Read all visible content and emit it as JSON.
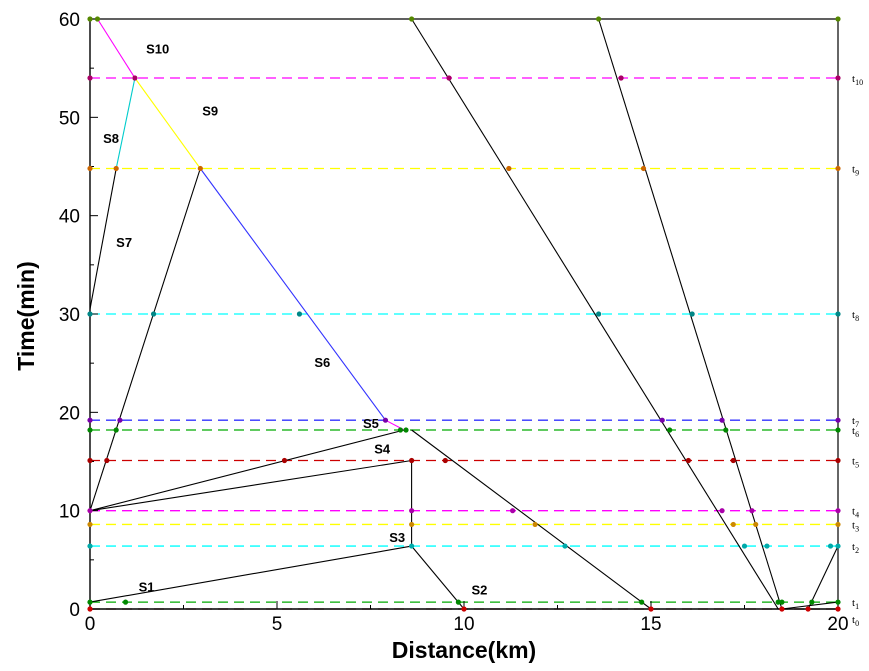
{
  "chart_data": {
    "type": "line",
    "xlabel": "Distance(km)",
    "ylabel": "Time(min)",
    "xlim": [
      0,
      20
    ],
    "ylim": [
      0,
      60
    ],
    "x_ticks": [
      "0",
      "5",
      "10",
      "15",
      "20"
    ],
    "y_ticks": [
      "0",
      "10",
      "20",
      "30",
      "40",
      "50",
      "60"
    ],
    "grid": false,
    "time_levels": [
      {
        "name": "t",
        "sub": "0",
        "y": 0.0,
        "color": "#8b0000"
      },
      {
        "name": "t",
        "sub": "1",
        "y": 0.7,
        "color": "#00aa00"
      },
      {
        "name": "t",
        "sub": "2",
        "y": 6.4,
        "color": "#00ffff"
      },
      {
        "name": "t",
        "sub": "3",
        "y": 8.6,
        "color": "#ffff00"
      },
      {
        "name": "t",
        "sub": "4",
        "y": 10.0,
        "color": "#ff00ff"
      },
      {
        "name": "t",
        "sub": "5",
        "y": 15.1,
        "color": "#cc0000"
      },
      {
        "name": "t",
        "sub": "6",
        "y": 18.2,
        "color": "#00aa00"
      },
      {
        "name": "t",
        "sub": "7",
        "y": 19.2,
        "color": "#3333ff"
      },
      {
        "name": "t",
        "sub": "8",
        "y": 30.0,
        "color": "#00ffff"
      },
      {
        "name": "t",
        "sub": "9",
        "y": 44.8,
        "color": "#ffff00"
      },
      {
        "name": "t",
        "sub": "10",
        "y": 54.0,
        "color": "#ff00ff"
      }
    ],
    "lines": [
      {
        "points": [
          [
            0,
            0
          ],
          [
            18.5,
            0
          ]
        ],
        "color": "#000000"
      },
      {
        "points": [
          [
            18.5,
            0
          ],
          [
            20,
            0.7
          ]
        ],
        "color": "#000000"
      },
      {
        "points": [
          [
            19.2,
            0
          ],
          [
            20,
            6.4
          ]
        ],
        "color": "#000000"
      },
      {
        "points": [
          [
            0,
            0.7
          ],
          [
            8.6,
            6.4
          ]
        ],
        "color": "#000000"
      },
      {
        "points": [
          [
            8.6,
            6.4
          ],
          [
            8.6,
            15.1
          ]
        ],
        "color": "#000000"
      },
      {
        "points": [
          [
            8.6,
            6.4
          ],
          [
            10,
            0
          ]
        ],
        "color": "#000000"
      },
      {
        "points": [
          [
            0,
            10
          ],
          [
            8.6,
            15.1
          ]
        ],
        "color": "#000000"
      },
      {
        "points": [
          [
            0,
            10
          ],
          [
            8.4,
            18.2
          ]
        ],
        "color": "#000000"
      },
      {
        "points": [
          [
            0,
            10
          ],
          [
            2.95,
            44.8
          ]
        ],
        "color": "#000000"
      },
      {
        "points": [
          [
            8.6,
            18.2
          ],
          [
            15.0,
            0
          ]
        ],
        "color": "#000000"
      },
      {
        "points": [
          [
            0,
            30.5
          ],
          [
            0.7,
            44.8
          ]
        ],
        "color": "#000000"
      },
      {
        "points": [
          [
            8.6,
            60
          ],
          [
            18.4,
            0
          ]
        ],
        "color": "#000000"
      },
      {
        "points": [
          [
            13.6,
            60
          ],
          [
            18.5,
            0
          ]
        ],
        "color": "#000000"
      },
      {
        "points": [
          [
            0.2,
            60
          ],
          [
            1.2,
            54.0
          ]
        ],
        "color": "#ff00ff"
      },
      {
        "points": [
          [
            0.7,
            44.8
          ],
          [
            1.2,
            54.0
          ]
        ],
        "color": "#00cccc"
      },
      {
        "points": [
          [
            1.2,
            54.0
          ],
          [
            2.95,
            44.8
          ]
        ],
        "color": "#ffff00"
      },
      {
        "points": [
          [
            2.95,
            44.8
          ],
          [
            7.9,
            19.2
          ]
        ],
        "color": "#3333ff"
      },
      {
        "points": [
          [
            7.9,
            19.2
          ],
          [
            8.4,
            18.2
          ]
        ],
        "color": "#ff00ff"
      }
    ],
    "points": [
      {
        "x": 0,
        "y": 0,
        "color": "#cc0000"
      },
      {
        "x": 10,
        "y": 0,
        "color": "#cc0000"
      },
      {
        "x": 15.0,
        "y": 0,
        "color": "#cc0000"
      },
      {
        "x": 18.5,
        "y": 0,
        "color": "#cc0000"
      },
      {
        "x": 19.2,
        "y": 0,
        "color": "#cc0000"
      },
      {
        "x": 20,
        "y": 0,
        "color": "#cc0000"
      },
      {
        "x": 0,
        "y": 0.7,
        "color": "#008800"
      },
      {
        "x": 0.95,
        "y": 0.7,
        "color": "#008800"
      },
      {
        "x": 9.85,
        "y": 0.7,
        "color": "#008800"
      },
      {
        "x": 14.75,
        "y": 0.7,
        "color": "#008800"
      },
      {
        "x": 18.4,
        "y": 0.7,
        "color": "#008800"
      },
      {
        "x": 18.5,
        "y": 0.7,
        "color": "#008800"
      },
      {
        "x": 19.3,
        "y": 0.7,
        "color": "#008800"
      },
      {
        "x": 20,
        "y": 0.7,
        "color": "#008800"
      },
      {
        "x": 0,
        "y": 6.4,
        "color": "#00aaaa"
      },
      {
        "x": 8.6,
        "y": 6.4,
        "color": "#00aaaa"
      },
      {
        "x": 12.7,
        "y": 6.4,
        "color": "#00aaaa"
      },
      {
        "x": 17.5,
        "y": 6.4,
        "color": "#00aaaa"
      },
      {
        "x": 18.1,
        "y": 6.4,
        "color": "#00aaaa"
      },
      {
        "x": 19.8,
        "y": 6.4,
        "color": "#00aaaa"
      },
      {
        "x": 20,
        "y": 6.4,
        "color": "#00aaaa"
      },
      {
        "x": 0,
        "y": 8.6,
        "color": "#cc8800"
      },
      {
        "x": 8.6,
        "y": 8.6,
        "color": "#cc8800"
      },
      {
        "x": 11.9,
        "y": 8.6,
        "color": "#cc8800"
      },
      {
        "x": 17.2,
        "y": 8.6,
        "color": "#cc8800"
      },
      {
        "x": 17.8,
        "y": 8.6,
        "color": "#cc8800"
      },
      {
        "x": 20,
        "y": 8.6,
        "color": "#cc8800"
      },
      {
        "x": 0,
        "y": 10,
        "color": "#aa00aa"
      },
      {
        "x": 8.6,
        "y": 10,
        "color": "#aa00aa"
      },
      {
        "x": 11.3,
        "y": 10,
        "color": "#aa00aa"
      },
      {
        "x": 16.9,
        "y": 10,
        "color": "#aa00aa"
      },
      {
        "x": 17.7,
        "y": 10,
        "color": "#aa00aa"
      },
      {
        "x": 20,
        "y": 10,
        "color": "#aa00aa"
      },
      {
        "x": 0,
        "y": 15.1,
        "color": "#aa0000"
      },
      {
        "x": 0.45,
        "y": 15.1,
        "color": "#aa0000"
      },
      {
        "x": 5.2,
        "y": 15.1,
        "color": "#aa0000"
      },
      {
        "x": 8.6,
        "y": 15.1,
        "color": "#aa0000"
      },
      {
        "x": 9.5,
        "y": 15.1,
        "color": "#aa0000"
      },
      {
        "x": 16.0,
        "y": 15.1,
        "color": "#aa0000"
      },
      {
        "x": 17.2,
        "y": 15.1,
        "color": "#aa0000"
      },
      {
        "x": 20,
        "y": 15.1,
        "color": "#aa0000"
      },
      {
        "x": 0,
        "y": 18.2,
        "color": "#008800"
      },
      {
        "x": 0.7,
        "y": 18.2,
        "color": "#008800"
      },
      {
        "x": 8.3,
        "y": 18.2,
        "color": "#008800"
      },
      {
        "x": 8.45,
        "y": 18.2,
        "color": "#008800"
      },
      {
        "x": 15.5,
        "y": 18.2,
        "color": "#008800"
      },
      {
        "x": 17.0,
        "y": 18.2,
        "color": "#008800"
      },
      {
        "x": 20,
        "y": 18.2,
        "color": "#008800"
      },
      {
        "x": 0,
        "y": 19.2,
        "color": "#7700aa"
      },
      {
        "x": 0.8,
        "y": 19.2,
        "color": "#7700aa"
      },
      {
        "x": 7.9,
        "y": 19.2,
        "color": "#7700aa"
      },
      {
        "x": 15.3,
        "y": 19.2,
        "color": "#7700aa"
      },
      {
        "x": 16.9,
        "y": 19.2,
        "color": "#7700aa"
      },
      {
        "x": 20,
        "y": 19.2,
        "color": "#7700aa"
      },
      {
        "x": 0,
        "y": 30,
        "color": "#008888"
      },
      {
        "x": 1.7,
        "y": 30,
        "color": "#008888"
      },
      {
        "x": 5.6,
        "y": 30,
        "color": "#008888"
      },
      {
        "x": 13.6,
        "y": 30,
        "color": "#008888"
      },
      {
        "x": 16.1,
        "y": 30,
        "color": "#008888"
      },
      {
        "x": 20,
        "y": 30,
        "color": "#008888"
      },
      {
        "x": 0,
        "y": 44.8,
        "color": "#cc6600"
      },
      {
        "x": 0.7,
        "y": 44.8,
        "color": "#cc6600"
      },
      {
        "x": 2.95,
        "y": 44.8,
        "color": "#cc6600"
      },
      {
        "x": 11.2,
        "y": 44.8,
        "color": "#cc6600"
      },
      {
        "x": 14.8,
        "y": 44.8,
        "color": "#cc6600"
      },
      {
        "x": 20,
        "y": 44.8,
        "color": "#cc6600"
      },
      {
        "x": 0,
        "y": 54,
        "color": "#aa0066"
      },
      {
        "x": 1.2,
        "y": 54,
        "color": "#aa0066"
      },
      {
        "x": 9.6,
        "y": 54,
        "color": "#aa0066"
      },
      {
        "x": 14.2,
        "y": 54,
        "color": "#aa0066"
      },
      {
        "x": 20,
        "y": 54,
        "color": "#aa0066"
      },
      {
        "x": 0,
        "y": 60,
        "color": "#558800"
      },
      {
        "x": 0.2,
        "y": 60,
        "color": "#558800"
      },
      {
        "x": 8.6,
        "y": 60,
        "color": "#558800"
      },
      {
        "x": 13.6,
        "y": 60,
        "color": "#558800"
      },
      {
        "x": 20,
        "y": 60,
        "color": "#558800"
      }
    ],
    "segment_labels": [
      {
        "text": "S1",
        "x": 1.3,
        "y": 1.8
      },
      {
        "text": "S2",
        "x": 10.2,
        "y": 1.5
      },
      {
        "text": "S3",
        "x": 8.0,
        "y": 6.8
      },
      {
        "text": "S4",
        "x": 7.6,
        "y": 15.8
      },
      {
        "text": "S5",
        "x": 7.3,
        "y": 18.4
      },
      {
        "text": "S6",
        "x": 6.0,
        "y": 24.6
      },
      {
        "text": "S7",
        "x": 0.7,
        "y": 36.8
      },
      {
        "text": "S8",
        "x": 0.35,
        "y": 47.4
      },
      {
        "text": "S9",
        "x": 3.0,
        "y": 50.2
      },
      {
        "text": "S10",
        "x": 1.5,
        "y": 56.5
      }
    ]
  }
}
